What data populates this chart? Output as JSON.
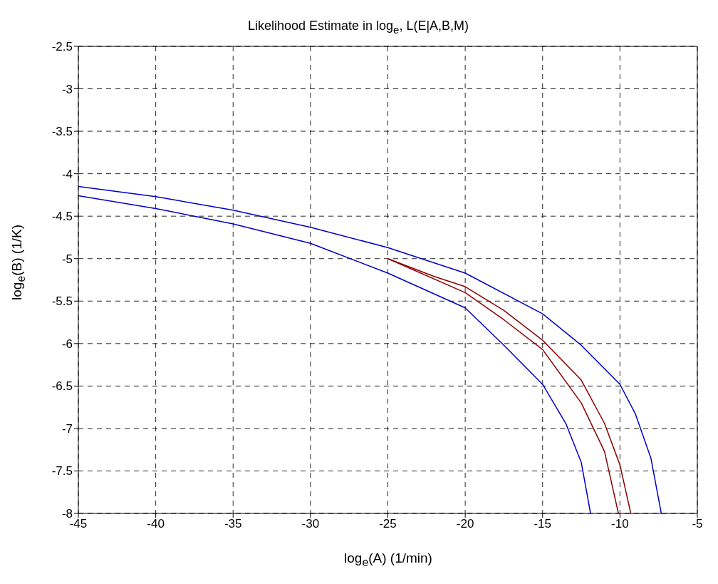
{
  "chart_data": {
    "type": "line",
    "title": "Likelihood Estimate in log$_{e}$, L(E|A,B,M)",
    "xlabel": "log$_{e}$(A) (1/min)",
    "ylabel": "log$_{e}$(B) (1/K)",
    "series": [
      {
        "color": "#0000c8",
        "x": [
          -45,
          -40,
          -35,
          -30,
          -25,
          -20,
          -15,
          -12.5,
          -10,
          -9,
          -8,
          -7.33
        ],
        "values": [
          -4.15,
          -4.27,
          -4.43,
          -4.63,
          -4.87,
          -5.17,
          -5.65,
          -6.02,
          -6.48,
          -6.83,
          -7.35,
          -8
        ]
      },
      {
        "color": "#8b0000",
        "x": [
          -25,
          -22,
          -20,
          -17.5,
          -15,
          -12.5,
          -11,
          -10,
          -9.3
        ],
        "values": [
          -5.0,
          -5.21,
          -5.33,
          -5.61,
          -5.96,
          -6.43,
          -6.94,
          -7.43,
          -8
        ]
      },
      {
        "color": "#8b0000",
        "x": [
          -25,
          -20,
          -17.5,
          -15,
          -12.5,
          -11,
          -10.1
        ],
        "values": [
          -5.0,
          -5.4,
          -5.72,
          -6.07,
          -6.7,
          -7.27,
          -8
        ]
      },
      {
        "color": "#0000c8",
        "x": [
          -45,
          -40,
          -35,
          -30,
          -25,
          -20,
          -17.5,
          -15,
          -13.5,
          -12.5,
          -11.9
        ],
        "values": [
          -4.26,
          -4.41,
          -4.59,
          -4.82,
          -5.17,
          -5.58,
          -6.02,
          -6.48,
          -6.94,
          -7.4,
          -8
        ]
      }
    ],
    "xlim": [
      -45,
      -5
    ],
    "xticks": [
      -45,
      -40,
      -35,
      -30,
      -25,
      -20,
      -15,
      -10,
      -5
    ],
    "ylim": [
      -8,
      -2.5
    ],
    "yticks": [
      -8,
      -7.5,
      -7,
      -6.5,
      -6,
      -5.5,
      -5,
      -4.5,
      -4,
      -3.5,
      -3,
      -2.5
    ],
    "grid": true,
    "marker": "none",
    "line_style": "solid"
  }
}
